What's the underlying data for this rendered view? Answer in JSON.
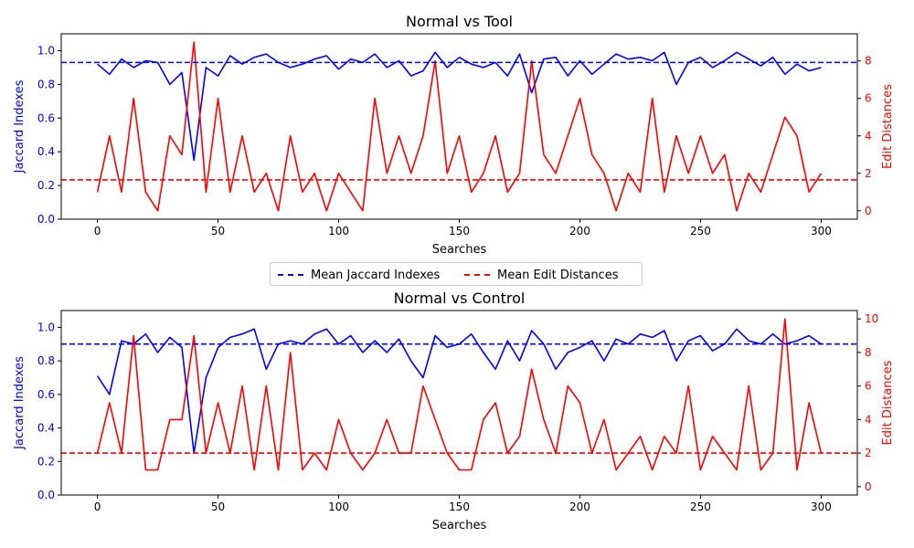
{
  "colors": {
    "jaccard": "#0000ff",
    "edit": "#ff0000",
    "axis": "#000000"
  },
  "legend": {
    "placement": "center, between the two panels",
    "items": [
      {
        "label": "Mean Jaccard Indexes",
        "color": "#0000ff",
        "style": "dashed"
      },
      {
        "label": "Mean Edit Distances",
        "color": "#ff0000",
        "style": "dashed"
      }
    ]
  },
  "chart_data": [
    {
      "type": "line",
      "title": "Normal vs Tool",
      "xlabel": "Searches",
      "ylabel_left": "Jaccard Indexes",
      "ylabel_right": "Edit Distances",
      "xlim": [
        -15,
        315
      ],
      "ylim_left": [
        0,
        1.1
      ],
      "ylim_right": [
        -0.45,
        9.45
      ],
      "xticks": [
        0,
        50,
        100,
        150,
        200,
        250,
        300
      ],
      "yticks_left": [
        0.0,
        0.2,
        0.4,
        0.6,
        0.8,
        1.0
      ],
      "yticks_right": [
        0,
        2,
        4,
        6,
        8
      ],
      "grid": false,
      "mean_jaccard": 0.93,
      "mean_edit": 1.65,
      "series": [
        {
          "name": "Jaccard Indexes",
          "axis": "left",
          "color": "#0000ff",
          "x": [
            0,
            5,
            10,
            15,
            20,
            25,
            30,
            35,
            40,
            45,
            50,
            55,
            60,
            65,
            70,
            75,
            80,
            85,
            90,
            95,
            100,
            105,
            110,
            115,
            120,
            125,
            130,
            135,
            140,
            145,
            150,
            155,
            160,
            165,
            170,
            175,
            180,
            185,
            190,
            195,
            200,
            205,
            210,
            215,
            220,
            225,
            230,
            235,
            240,
            245,
            250,
            255,
            260,
            265,
            270,
            275,
            280,
            285,
            290,
            295,
            300
          ],
          "values": [
            0.92,
            0.86,
            0.95,
            0.9,
            0.94,
            0.93,
            0.8,
            0.87,
            0.35,
            0.9,
            0.85,
            0.97,
            0.92,
            0.96,
            0.98,
            0.93,
            0.9,
            0.92,
            0.95,
            0.97,
            0.89,
            0.95,
            0.93,
            0.98,
            0.9,
            0.94,
            0.85,
            0.88,
            0.99,
            0.9,
            0.96,
            0.92,
            0.9,
            0.93,
            0.85,
            0.98,
            0.75,
            0.95,
            0.96,
            0.85,
            0.94,
            0.86,
            0.92,
            0.98,
            0.95,
            0.96,
            0.94,
            0.99,
            0.8,
            0.93,
            0.96,
            0.9,
            0.94,
            0.99,
            0.95,
            0.91,
            0.96,
            0.86,
            0.92,
            0.88,
            0.9
          ]
        },
        {
          "name": "Edit Distances",
          "axis": "right",
          "color": "#ff0000",
          "x": [
            0,
            5,
            10,
            15,
            20,
            25,
            30,
            35,
            40,
            45,
            50,
            55,
            60,
            65,
            70,
            75,
            80,
            85,
            90,
            95,
            100,
            105,
            110,
            115,
            120,
            125,
            130,
            135,
            140,
            145,
            150,
            155,
            160,
            165,
            170,
            175,
            180,
            185,
            190,
            195,
            200,
            205,
            210,
            215,
            220,
            225,
            230,
            235,
            240,
            245,
            250,
            255,
            260,
            265,
            270,
            275,
            280,
            285,
            290,
            295,
            300
          ],
          "values": [
            1,
            4,
            1,
            6,
            1,
            0,
            4,
            3,
            9,
            1,
            6,
            1,
            4,
            1,
            2,
            0,
            4,
            1,
            2,
            0,
            2,
            1,
            0,
            6,
            2,
            4,
            2,
            4,
            8,
            2,
            4,
            1,
            2,
            4,
            1,
            2,
            8,
            3,
            2,
            4,
            6,
            3,
            2,
            0,
            2,
            1,
            6,
            1,
            4,
            2,
            4,
            2,
            3,
            0,
            2,
            1,
            3,
            5,
            4,
            1,
            2
          ]
        }
      ]
    },
    {
      "type": "line",
      "title": "Normal vs Control",
      "xlabel": "Searches",
      "ylabel_left": "Jaccard Indexes",
      "ylabel_right": "Edit Distances",
      "xlim": [
        -15,
        315
      ],
      "ylim_left": [
        0,
        1.1
      ],
      "ylim_right": [
        -0.5,
        10.5
      ],
      "xticks": [
        0,
        50,
        100,
        150,
        200,
        250,
        300
      ],
      "yticks_left": [
        0.0,
        0.2,
        0.4,
        0.6,
        0.8,
        1.0
      ],
      "yticks_right": [
        0,
        2,
        4,
        6,
        8,
        10
      ],
      "grid": false,
      "mean_jaccard": 0.9,
      "mean_edit": 2.0,
      "series": [
        {
          "name": "Jaccard Indexes",
          "axis": "left",
          "color": "#0000ff",
          "x": [
            0,
            5,
            10,
            15,
            20,
            25,
            30,
            35,
            40,
            45,
            50,
            55,
            60,
            65,
            70,
            75,
            80,
            85,
            90,
            95,
            100,
            105,
            110,
            115,
            120,
            125,
            130,
            135,
            140,
            145,
            150,
            155,
            160,
            165,
            170,
            175,
            180,
            185,
            190,
            195,
            200,
            205,
            210,
            215,
            220,
            225,
            230,
            235,
            240,
            245,
            250,
            255,
            260,
            265,
            270,
            275,
            280,
            285,
            290,
            295,
            300
          ],
          "values": [
            0.71,
            0.6,
            0.92,
            0.9,
            0.96,
            0.85,
            0.94,
            0.88,
            0.25,
            0.7,
            0.88,
            0.94,
            0.96,
            0.99,
            0.75,
            0.9,
            0.92,
            0.9,
            0.96,
            0.99,
            0.9,
            0.95,
            0.85,
            0.92,
            0.85,
            0.93,
            0.8,
            0.7,
            0.95,
            0.88,
            0.9,
            0.96,
            0.85,
            0.75,
            0.92,
            0.8,
            0.98,
            0.9,
            0.75,
            0.85,
            0.88,
            0.92,
            0.8,
            0.93,
            0.9,
            0.96,
            0.94,
            0.98,
            0.8,
            0.92,
            0.95,
            0.86,
            0.9,
            0.99,
            0.92,
            0.9,
            0.96,
            0.9,
            0.92,
            0.95,
            0.9
          ]
        },
        {
          "name": "Edit Distances",
          "axis": "right",
          "color": "#ff0000",
          "x": [
            0,
            5,
            10,
            15,
            20,
            25,
            30,
            35,
            40,
            45,
            50,
            55,
            60,
            65,
            70,
            75,
            80,
            85,
            90,
            95,
            100,
            105,
            110,
            115,
            120,
            125,
            130,
            135,
            140,
            145,
            150,
            155,
            160,
            165,
            170,
            175,
            180,
            185,
            190,
            195,
            200,
            205,
            210,
            215,
            220,
            225,
            230,
            235,
            240,
            245,
            250,
            255,
            260,
            265,
            270,
            275,
            280,
            285,
            290,
            295,
            300
          ],
          "values": [
            2,
            5,
            2,
            9,
            1,
            1,
            4,
            4,
            9,
            2,
            5,
            2,
            6,
            1,
            6,
            1,
            8,
            1,
            2,
            1,
            4,
            2,
            1,
            2,
            4,
            2,
            2,
            6,
            4,
            2,
            1,
            1,
            4,
            5,
            2,
            3,
            7,
            4,
            2,
            6,
            5,
            2,
            4,
            1,
            2,
            3,
            1,
            3,
            2,
            6,
            1,
            3,
            2,
            1,
            6,
            1,
            2,
            10,
            1,
            5,
            2
          ]
        }
      ]
    }
  ]
}
